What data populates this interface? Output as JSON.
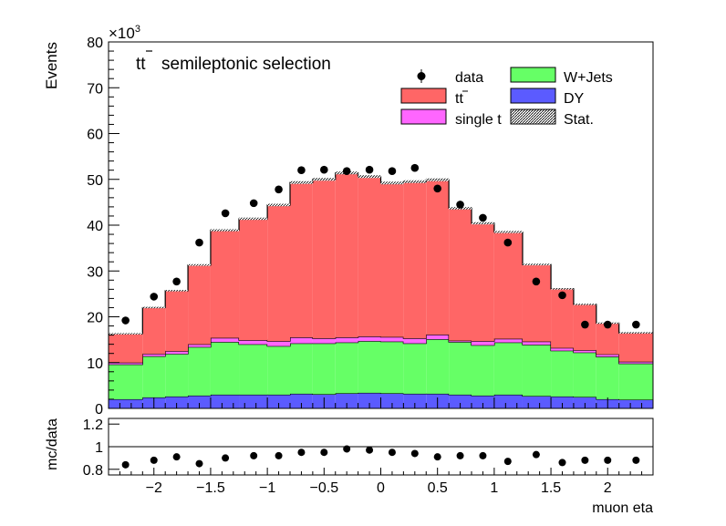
{
  "chart_data": [
    {
      "type": "stacked-histogram",
      "title": "t̄t semileptonic selection",
      "title_parts": [
        "tt",
        "semileptonic selection"
      ],
      "ylabel": "Events",
      "y_multiplier": "×10",
      "y_multiplier_exp": "3",
      "ylim": [
        0,
        80
      ],
      "xlim": [
        -2.4,
        2.4
      ],
      "bin_edges": [
        -2.4,
        -2.1,
        -1.9,
        -1.7,
        -1.5,
        -1.25,
        -1.0,
        -0.8,
        -0.6,
        -0.4,
        -0.2,
        0.0,
        0.2,
        0.4,
        0.6,
        0.8,
        1.0,
        1.25,
        1.5,
        1.7,
        1.9,
        2.1,
        2.4
      ],
      "series": [
        {
          "name": "DY",
          "color": "#5b5bff",
          "values": [
            2.0,
            2.4,
            2.6,
            2.8,
            3.0,
            3.0,
            3.0,
            3.2,
            3.1,
            3.3,
            3.4,
            3.3,
            3.2,
            3.2,
            3.0,
            2.8,
            3.0,
            2.7,
            2.6,
            2.5,
            2.0,
            1.9
          ]
        },
        {
          "name": "W+Jets",
          "color": "#66ff66",
          "values": [
            7.6,
            9.0,
            9.3,
            10.6,
            11.5,
            11.0,
            10.6,
            11.0,
            11.1,
            11.1,
            11.3,
            11.3,
            11.0,
            11.9,
            11.5,
            11.0,
            11.4,
            11.2,
            10.0,
            9.7,
            9.3,
            7.9
          ]
        },
        {
          "name": "single t",
          "color": "#ff66ff",
          "values": [
            0.4,
            0.5,
            0.6,
            0.6,
            0.9,
            0.9,
            1.1,
            1.3,
            1.1,
            1.1,
            1.0,
            1.0,
            1.1,
            1.0,
            0.3,
            0.9,
            0.8,
            0.7,
            0.6,
            0.5,
            0.5,
            0.4
          ]
        },
        {
          "name": "tt",
          "color": "#ff6666",
          "values": [
            6.3,
            10.1,
            13.2,
            17.3,
            23.5,
            26.5,
            29.7,
            33.8,
            34.7,
            35.9,
            34.9,
            33.6,
            34.2,
            33.8,
            28.9,
            25.7,
            23.3,
            16.8,
            12.9,
            10.0,
            6.8,
            6.3
          ]
        }
      ],
      "data": {
        "name": "data",
        "x": [
          -2.25,
          -2.0,
          -1.8,
          -1.6,
          -1.37,
          -1.12,
          -0.9,
          -0.7,
          -0.5,
          -0.3,
          -0.1,
          0.1,
          0.3,
          0.5,
          0.7,
          0.9,
          1.12,
          1.37,
          1.6,
          1.8,
          2.0,
          2.25
        ],
        "values": [
          19.2,
          24.4,
          27.7,
          36.2,
          42.6,
          44.8,
          47.8,
          52.0,
          52.1,
          51.8,
          52.1,
          51.8,
          52.5,
          48.0,
          44.5,
          41.6,
          36.2,
          27.7,
          24.7,
          18.3,
          18.3,
          18.3
        ]
      },
      "legend": {
        "placement": "top-right",
        "entries": [
          "data",
          "W+Jets",
          "tt",
          "DY",
          "single t",
          "Stat."
        ]
      },
      "yticks": [
        "0",
        "10",
        "20",
        "30",
        "40",
        "50",
        "60",
        "70",
        "80"
      ]
    },
    {
      "type": "scatter",
      "ylabel": "mc/data",
      "xlabel": "muon eta",
      "ylim": [
        0.75,
        1.25
      ],
      "xlim": [
        -2.4,
        2.4
      ],
      "reference_line": 1,
      "x": [
        -2.25,
        -2.0,
        -1.8,
        -1.6,
        -1.37,
        -1.12,
        -0.9,
        -0.7,
        -0.5,
        -0.3,
        -0.1,
        0.1,
        0.3,
        0.5,
        0.7,
        0.9,
        1.12,
        1.37,
        1.6,
        1.8,
        2.0,
        2.25
      ],
      "values": [
        0.84,
        0.88,
        0.91,
        0.85,
        0.9,
        0.92,
        0.92,
        0.95,
        0.95,
        0.98,
        0.97,
        0.95,
        0.94,
        0.91,
        0.92,
        0.92,
        0.87,
        0.93,
        0.86,
        0.88,
        0.88,
        0.88
      ],
      "yticks": [
        "0.8",
        "1",
        "1.2"
      ],
      "xticks": [
        "−2",
        "−1.5",
        "−1",
        "−0.5",
        "0",
        "0.5",
        "1",
        "1.5",
        "2"
      ]
    }
  ]
}
